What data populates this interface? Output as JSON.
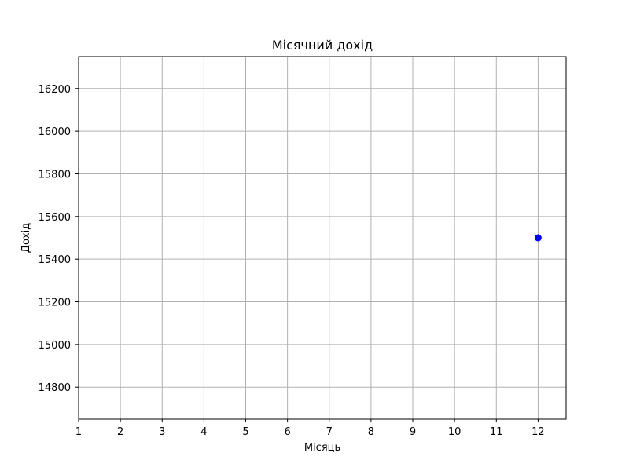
{
  "chart_data": {
    "type": "scatter",
    "title": "Місячний дохід",
    "xlabel": "Місяць",
    "ylabel": "Дохід",
    "x": [
      12
    ],
    "y": [
      15500
    ],
    "xlim": [
      1,
      12.67
    ],
    "ylim": [
      14650,
      16350
    ],
    "xticks": [
      1,
      2,
      3,
      4,
      5,
      6,
      7,
      8,
      9,
      10,
      11,
      12
    ],
    "yticks": [
      14800,
      15000,
      15200,
      15400,
      15600,
      15800,
      16000,
      16200
    ],
    "grid": true,
    "series": [
      {
        "color": "#0000ff",
        "x": [
          12
        ],
        "y": [
          15500
        ]
      }
    ]
  },
  "colors": {
    "marker": "#0000ff",
    "grid": "#b0b0b0",
    "axes": "#000000",
    "background": "#ffffff"
  }
}
